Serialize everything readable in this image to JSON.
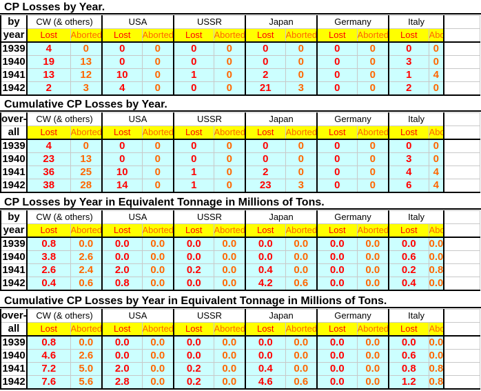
{
  "countries": [
    "CW (& others)",
    "USA",
    "USSR",
    "Japan",
    "Germany",
    "Italy"
  ],
  "col_lost": "Lost",
  "col_aborted": "Aborted",
  "years": [
    "1939",
    "1940",
    "1941",
    "1942"
  ],
  "sections": [
    {
      "title": "CP Losses by Year.",
      "label_top": "by",
      "label_bottom": "year",
      "rows": [
        [
          "4",
          "0",
          "0",
          "0",
          "0",
          "0",
          "0",
          "0",
          "0",
          "0",
          "0",
          "0"
        ],
        [
          "19",
          "13",
          "0",
          "0",
          "0",
          "0",
          "0",
          "0",
          "0",
          "0",
          "3",
          "0"
        ],
        [
          "13",
          "12",
          "10",
          "0",
          "1",
          "0",
          "2",
          "0",
          "0",
          "0",
          "1",
          "4"
        ],
        [
          "2",
          "3",
          "4",
          "0",
          "0",
          "0",
          "21",
          "3",
          "0",
          "0",
          "2",
          "0"
        ]
      ]
    },
    {
      "title": "Cumulative CP Losses by Year.",
      "label_top": "over-",
      "label_bottom": "all",
      "rows": [
        [
          "4",
          "0",
          "0",
          "0",
          "0",
          "0",
          "0",
          "0",
          "0",
          "0",
          "0",
          "0"
        ],
        [
          "23",
          "13",
          "0",
          "0",
          "0",
          "0",
          "0",
          "0",
          "0",
          "0",
          "3",
          "0"
        ],
        [
          "36",
          "25",
          "10",
          "0",
          "1",
          "0",
          "2",
          "0",
          "0",
          "0",
          "4",
          "4"
        ],
        [
          "38",
          "28",
          "14",
          "0",
          "1",
          "0",
          "23",
          "3",
          "0",
          "0",
          "6",
          "4"
        ]
      ]
    },
    {
      "title": "CP Losses by Year in Equivalent Tonnage in Millions of Tons.",
      "label_top": "by",
      "label_bottom": "year",
      "rows": [
        [
          "0.8",
          "0.0",
          "0.0",
          "0.0",
          "0.0",
          "0.0",
          "0.0",
          "0.0",
          "0.0",
          "0.0",
          "0.0",
          "0.0"
        ],
        [
          "3.8",
          "2.6",
          "0.0",
          "0.0",
          "0.0",
          "0.0",
          "0.0",
          "0.0",
          "0.0",
          "0.0",
          "0.6",
          "0.0"
        ],
        [
          "2.6",
          "2.4",
          "2.0",
          "0.0",
          "0.2",
          "0.0",
          "0.4",
          "0.0",
          "0.0",
          "0.0",
          "0.2",
          "0.8"
        ],
        [
          "0.4",
          "0.6",
          "0.8",
          "0.0",
          "0.0",
          "0.0",
          "4.2",
          "0.6",
          "0.0",
          "0.0",
          "0.4",
          "0.0"
        ]
      ]
    },
    {
      "title": "Cumulative CP Losses by Year in Equivalent Tonnage in Millions of Tons.",
      "label_top": "over-",
      "label_bottom": "all",
      "rows": [
        [
          "0.8",
          "0.0",
          "0.0",
          "0.0",
          "0.0",
          "0.0",
          "0.0",
          "0.0",
          "0.0",
          "0.0",
          "0.0",
          "0.0"
        ],
        [
          "4.6",
          "2.6",
          "0.0",
          "0.0",
          "0.0",
          "0.0",
          "0.0",
          "0.0",
          "0.0",
          "0.0",
          "0.6",
          "0.0"
        ],
        [
          "7.2",
          "5.0",
          "2.0",
          "0.0",
          "0.2",
          "0.0",
          "0.4",
          "0.0",
          "0.0",
          "0.0",
          "0.8",
          "0.8"
        ],
        [
          "7.6",
          "5.6",
          "2.8",
          "0.0",
          "0.2",
          "0.0",
          "4.6",
          "0.6",
          "0.0",
          "0.0",
          "1.2",
          "0.8"
        ]
      ]
    }
  ]
}
